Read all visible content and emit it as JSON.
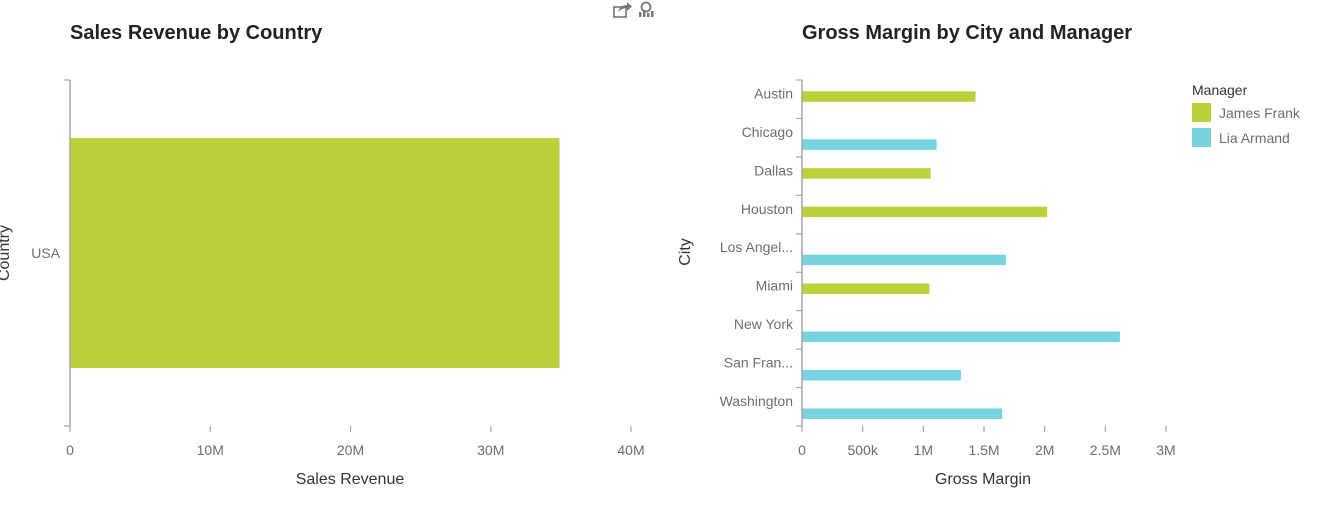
{
  "toolbar": {
    "share_icon": "share-icon",
    "chart_tool_icon": "chart-zoom-icon"
  },
  "chart_data": [
    {
      "type": "bar",
      "orientation": "horizontal",
      "title": "Sales Revenue by Country",
      "xlabel": "Sales Revenue",
      "ylabel": "Country",
      "categories": [
        "USA"
      ],
      "series": [
        {
          "color": "#bcd03b",
          "values": [
            34.9
          ]
        }
      ],
      "value_unit": "millions",
      "xlim": [
        0,
        40
      ],
      "xticks": [
        "0",
        "10M",
        "20M",
        "30M",
        "40M"
      ],
      "grid": false,
      "legend": "none"
    },
    {
      "type": "bar",
      "orientation": "horizontal",
      "title": "Gross Margin by City and Manager",
      "xlabel": "Gross Margin",
      "ylabel": "City",
      "categories": [
        "Austin",
        "Chicago",
        "Dallas",
        "Houston",
        "Los Angel...",
        "Miami",
        "New York",
        "San Fran...",
        "Washington"
      ],
      "series": [
        {
          "name": "James Frank",
          "color": "#bcd03b",
          "values": [
            1.43,
            null,
            1.06,
            2.02,
            null,
            1.05,
            null,
            null,
            null
          ]
        },
        {
          "name": "Lia Armand",
          "color": "#76d3df",
          "values": [
            null,
            1.11,
            null,
            null,
            1.68,
            null,
            2.62,
            1.31,
            1.65
          ]
        }
      ],
      "value_unit": "millions",
      "xlim": [
        0,
        3
      ],
      "xticks": [
        "0",
        "500k",
        "1M",
        "1.5M",
        "2M",
        "2.5M",
        "3M"
      ],
      "legend_title": "Manager",
      "legend": "top-right",
      "grid": false
    }
  ]
}
